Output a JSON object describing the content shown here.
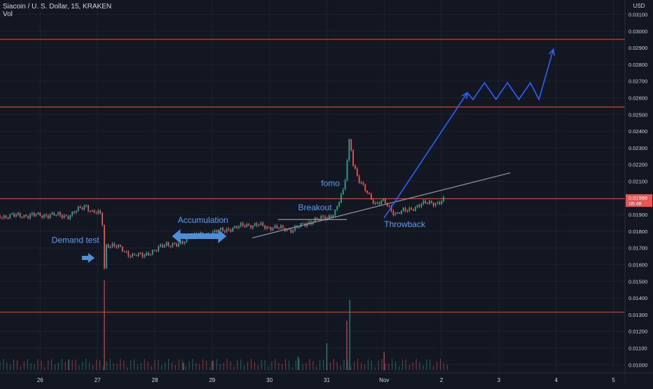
{
  "chart_data": {
    "type": "candlestick",
    "header": {
      "symbol_line": "Siacoin / U. S. Dollar, 15, KRAKEN",
      "volume_label": "Vol"
    },
    "price_axis": {
      "unit": "USD",
      "ticks": [
        "0.03100",
        "0.03000",
        "0.02900",
        "0.02800",
        "0.02700",
        "0.02600",
        "0.02500",
        "0.02400",
        "0.02300",
        "0.02200",
        "0.02100",
        "0.01900",
        "0.01800",
        "0.01700",
        "0.01600",
        "0.01500",
        "0.01400",
        "0.01300",
        "0.01200",
        "0.01100",
        "0.01000"
      ],
      "current_price": "0.01988",
      "countdown": "05:48"
    },
    "time_axis": {
      "ticks": [
        {
          "label": "26",
          "t": 26
        },
        {
          "label": "27",
          "t": 27
        },
        {
          "label": "28",
          "t": 28
        },
        {
          "label": "29",
          "t": 29
        },
        {
          "label": "30",
          "t": 30
        },
        {
          "label": "31",
          "t": 31
        },
        {
          "label": "Nov",
          "t": 32
        },
        {
          "label": "2",
          "t": 33
        },
        {
          "label": "3",
          "t": 34
        },
        {
          "label": "4",
          "t": 35
        },
        {
          "label": "5",
          "t": 36
        }
      ]
    },
    "horizontal_levels": [
      0.0295,
      0.02545,
      0.01995,
      0.01315
    ],
    "price_path": [
      [
        25.3,
        0.0189
      ],
      [
        25.8,
        0.01895
      ],
      [
        26.3,
        0.01897
      ],
      [
        26.5,
        0.0189
      ],
      [
        26.8,
        0.0196
      ],
      [
        26.9,
        0.0191
      ],
      [
        27.05,
        0.01905
      ],
      [
        27.1,
        0.0183
      ],
      [
        27.12,
        0.0158
      ],
      [
        27.15,
        0.0172
      ],
      [
        27.4,
        0.017
      ],
      [
        27.6,
        0.0165
      ],
      [
        27.8,
        0.0166
      ],
      [
        28.0,
        0.0168
      ],
      [
        28.2,
        0.0173
      ],
      [
        28.4,
        0.0171
      ],
      [
        28.6,
        0.0177
      ],
      [
        28.9,
        0.0178
      ],
      [
        29.1,
        0.018
      ],
      [
        29.4,
        0.0182
      ],
      [
        29.6,
        0.0184
      ],
      [
        29.9,
        0.0183
      ],
      [
        30.1,
        0.0182
      ],
      [
        30.4,
        0.0181
      ],
      [
        30.6,
        0.0184
      ],
      [
        30.8,
        0.0187
      ],
      [
        31.0,
        0.0188
      ],
      [
        31.15,
        0.0192
      ],
      [
        31.3,
        0.0205
      ],
      [
        31.4,
        0.0238
      ],
      [
        31.45,
        0.0222
      ],
      [
        31.55,
        0.021
      ],
      [
        31.7,
        0.0204
      ],
      [
        31.85,
        0.0196
      ],
      [
        32.0,
        0.0198
      ],
      [
        32.2,
        0.019
      ],
      [
        32.4,
        0.0193
      ],
      [
        32.6,
        0.0195
      ],
      [
        32.8,
        0.0198
      ],
      [
        32.95,
        0.0196
      ],
      [
        33.05,
        0.0199
      ]
    ],
    "volume_spikes": [
      [
        27.12,
        1.0
      ],
      [
        31.4,
        0.78
      ],
      [
        31.35,
        0.55
      ],
      [
        31.0,
        0.3
      ],
      [
        32.0,
        0.2
      ],
      [
        26.5,
        0.12
      ],
      [
        28.5,
        0.08
      ],
      [
        30.5,
        0.15
      ],
      [
        29.0,
        0.1
      ]
    ],
    "trendlines": [
      {
        "from": [
          29.7,
          0.0176
        ],
        "to": [
          34.2,
          0.0215
        ],
        "color": "#9598a1"
      },
      {
        "from": [
          30.15,
          0.0187
        ],
        "to": [
          31.35,
          0.0187
        ],
        "color": "#9598a1"
      }
    ],
    "projection": {
      "color": "#2962ff",
      "points": [
        [
          32.0,
          0.0188
        ],
        [
          33.45,
          0.0263
        ],
        [
          33.55,
          0.0259
        ],
        [
          33.75,
          0.0269
        ],
        [
          33.95,
          0.0259
        ],
        [
          34.15,
          0.0269
        ],
        [
          34.35,
          0.0259
        ],
        [
          34.55,
          0.0269
        ],
        [
          34.7,
          0.0259
        ],
        [
          34.95,
          0.0289
        ]
      ]
    },
    "annotations": [
      {
        "text": "Demand test",
        "t": 26.2,
        "p": 0.0173,
        "color": "#5b9cf6"
      },
      {
        "text": "Accumulation",
        "t": 28.4,
        "p": 0.0185,
        "color": "#5b9cf6"
      },
      {
        "text": "Breakout",
        "t": 30.5,
        "p": 0.01925,
        "color": "#5b9cf6"
      },
      {
        "text": "fomo",
        "t": 30.9,
        "p": 0.0207,
        "color": "#5b9cf6"
      },
      {
        "text": "Throwback",
        "t": 32.0,
        "p": 0.01825,
        "color": "#5b9cf6"
      }
    ],
    "arrows": [
      {
        "name": "demand-arrow",
        "type": "right",
        "t": 26.9,
        "p": 0.0164
      },
      {
        "name": "accumulation-arrow",
        "type": "double",
        "t1": 28.3,
        "t2": 29.25,
        "p": 0.0177
      }
    ],
    "colors": {
      "background": "#131722",
      "grid": "#1e222d",
      "level": "#e53935",
      "up": "#26a69a",
      "down": "#ef5350",
      "text": "#d1d4dc",
      "accent": "#2962ff",
      "price_badge": "#ef5350"
    }
  }
}
